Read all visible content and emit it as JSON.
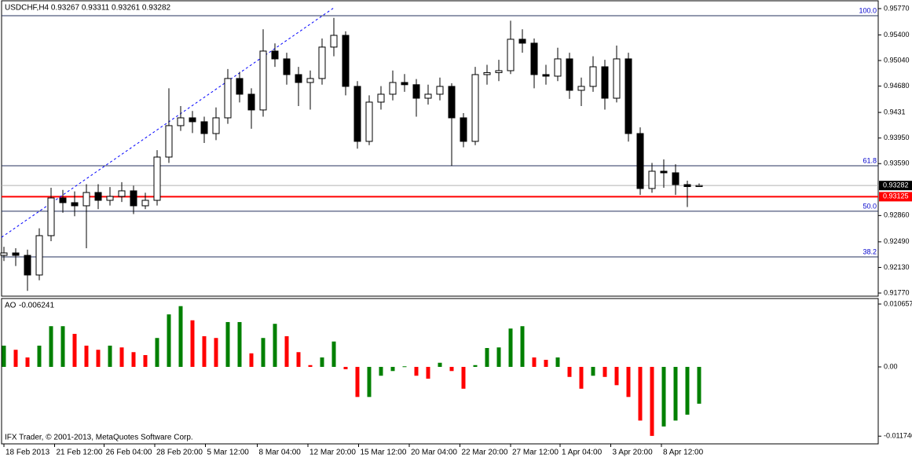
{
  "chart_data": [
    {
      "type": "candlestick",
      "title": "USDCHF,H4 0.93267 0.93311 0.93261 0.93282",
      "open": [
        0.923,
        0.92334,
        0.923,
        0.92024,
        0.92577,
        0.93107,
        0.93041,
        0.92997,
        0.93184,
        0.93074,
        0.93129,
        0.93207,
        0.92997,
        0.93074,
        0.93682,
        0.94124,
        0.94234,
        0.94179,
        0.94013,
        0.94234,
        0.94787,
        0.94566,
        0.94345,
        0.95173,
        0.95063,
        0.94842,
        0.94731,
        0.94787,
        0.95229,
        0.95394,
        0.94676,
        0.93903,
        0.94455,
        0.94566,
        0.94731,
        0.947,
        0.9451,
        0.94566,
        0.94676,
        0.94234,
        0.93903,
        0.94842,
        0.9487,
        0.94897,
        0.95339,
        0.95284,
        0.94842,
        0.9482,
        0.95063,
        0.94621,
        0.94676,
        0.94952,
        0.9451,
        0.95063,
        0.94013,
        0.9324,
        0.93483,
        0.93461,
        0.93295,
        0.93267
      ],
      "high": [
        0.9242,
        0.924,
        0.9238,
        0.9268,
        0.9325,
        0.9322,
        0.932,
        0.933,
        0.933,
        0.9326,
        0.9333,
        0.9328,
        0.9318,
        0.9378,
        0.9465,
        0.944,
        0.9433,
        0.9425,
        0.9438,
        0.9492,
        0.9488,
        0.9465,
        0.9548,
        0.9528,
        0.9515,
        0.9495,
        0.949,
        0.9535,
        0.9564,
        0.9545,
        0.9475,
        0.9455,
        0.9468,
        0.949,
        0.9485,
        0.9478,
        0.947,
        0.948,
        0.9472,
        0.943,
        0.9495,
        0.9498,
        0.9505,
        0.956,
        0.9548,
        0.9535,
        0.9498,
        0.9522,
        0.9515,
        0.948,
        0.951,
        0.9505,
        0.9525,
        0.9515,
        0.941,
        0.936,
        0.9365,
        0.9358,
        0.9335,
        0.93311
      ],
      "low": [
        0.9222,
        0.9215,
        0.918,
        0.9195,
        0.925,
        0.929,
        0.9285,
        0.924,
        0.9295,
        0.93,
        0.9305,
        0.9288,
        0.9295,
        0.93,
        0.936,
        0.9405,
        0.9402,
        0.9388,
        0.9392,
        0.9415,
        0.9445,
        0.9408,
        0.9425,
        0.9495,
        0.947,
        0.944,
        0.9435,
        0.947,
        0.951,
        0.9455,
        0.938,
        0.9385,
        0.9435,
        0.9448,
        0.946,
        0.9425,
        0.9442,
        0.9448,
        0.9356,
        0.9382,
        0.9385,
        0.947,
        0.9475,
        0.9485,
        0.9515,
        0.9465,
        0.947,
        0.9475,
        0.945,
        0.944,
        0.946,
        0.9435,
        0.9445,
        0.939,
        0.9315,
        0.9318,
        0.9325,
        0.9315,
        0.9298,
        0.93261
      ],
      "close": [
        0.92334,
        0.923,
        0.92024,
        0.92577,
        0.93107,
        0.93041,
        0.92997,
        0.93184,
        0.93074,
        0.93129,
        0.93207,
        0.92997,
        0.93074,
        0.93682,
        0.94124,
        0.94234,
        0.94179,
        0.94013,
        0.94234,
        0.94787,
        0.94566,
        0.94345,
        0.95173,
        0.95063,
        0.94842,
        0.94731,
        0.94787,
        0.95229,
        0.95394,
        0.94676,
        0.93903,
        0.94455,
        0.94566,
        0.94731,
        0.947,
        0.9451,
        0.94566,
        0.94676,
        0.94234,
        0.93903,
        0.94842,
        0.9487,
        0.94897,
        0.95339,
        0.95284,
        0.94842,
        0.9482,
        0.95063,
        0.94621,
        0.94676,
        0.94952,
        0.9451,
        0.95063,
        0.94013,
        0.9324,
        0.93483,
        0.93461,
        0.93295,
        0.93267,
        0.93282
      ],
      "up_color": "#ffffff",
      "down_color": "#000000",
      "xlim": [
        -0.2,
        74.2
      ],
      "xticks": [
        {
          "value": 0,
          "label": "18 Feb 2013"
        },
        {
          "value": 4.3,
          "label": "21 Feb 12:00"
        },
        {
          "value": 8.5,
          "label": "26 Feb 04:00"
        },
        {
          "value": 12.8,
          "label": "28 Feb 20:00"
        },
        {
          "value": 17.1,
          "label": "5 Mar 12:00"
        },
        {
          "value": 21.5,
          "label": "8 Mar 04:00"
        },
        {
          "value": 25.8,
          "label": "12 Mar 20:00"
        },
        {
          "value": 30.1,
          "label": "15 Mar 12:00"
        },
        {
          "value": 34.4,
          "label": "20 Mar 04:00"
        },
        {
          "value": 38.7,
          "label": "22 Mar 20:00"
        },
        {
          "value": 43,
          "label": "27 Mar 12:00"
        },
        {
          "value": 47.2,
          "label": "1 Apr 04:00"
        },
        {
          "value": 51.5,
          "label": "3 Apr 20:00"
        },
        {
          "value": 55.8,
          "label": "8 Apr 12:00"
        }
      ],
      "ylim": [
        0.91726,
        0.9588
      ],
      "yticks": [
        {
          "value": 0.9577,
          "label": "0.95770"
        },
        {
          "value": 0.954,
          "label": "0.95400"
        },
        {
          "value": 0.9504,
          "label": "0.95040"
        },
        {
          "value": 0.9468,
          "label": "0.94680"
        },
        0.9431,
        {
          "value": 0.9395,
          "label": "0.93950"
        },
        {
          "value": 0.9359,
          "label": "0.93590"
        },
        {
          "value": 0.9286,
          "label": "0.92860"
        },
        {
          "value": 0.9249,
          "label": "0.92490"
        },
        {
          "value": 0.9213,
          "label": "0.92130"
        },
        {
          "value": 0.9177,
          "label": "0.91770"
        }
      ],
      "levels": [
        {
          "value": 0.9567,
          "label": "100.0"
        },
        {
          "value": 0.9356,
          "label": "61.8"
        },
        {
          "value": 0.9292,
          "label": "50.0"
        },
        {
          "value": 0.92278,
          "label": "38.2"
        }
      ],
      "level_color": "#24325e",
      "current_price": 0.93282,
      "marked_price": 0.93125,
      "marked_color": "#ff0000",
      "trend_line": {
        "x": [
          -0.2,
          28
        ],
        "y": [
          0.92554,
          0.95781
        ],
        "color": "#0000ff"
      }
    },
    {
      "type": "bar",
      "title": "AO",
      "values": [
        0.0036,
        0.0029,
        0.0016,
        0.0036,
        0.0069,
        0.0069,
        0.0056,
        0.0036,
        0.0029,
        0.0036,
        0.0033,
        0.0025,
        0.002,
        0.0049,
        0.0089,
        0.0103,
        0.0079,
        0.0052,
        0.0049,
        0.0076,
        0.0076,
        0.0023,
        0.0049,
        0.0073,
        0.0052,
        0.0025,
        0.0003,
        0.0016,
        0.0043,
        -0.0004,
        -0.0051,
        -0.0051,
        -0.0015,
        -0.0007,
        0.0001,
        -0.0015,
        -0.002,
        0.0007,
        -0.0007,
        -0.0037,
        0.0003,
        0.0032,
        0.0033,
        0.0065,
        0.0069,
        0.0016,
        0.0012,
        0.0016,
        -0.0017,
        -0.0037,
        -0.0015,
        -0.0017,
        -0.0031,
        -0.0051,
        -0.0091,
        -0.0117,
        -0.0101,
        -0.0091,
        -0.0081,
        -0.006241
      ],
      "up_color": "#008000",
      "down_color": "#ff0000",
      "ylim": [
        -0.01265,
        0.01159
      ],
      "yticks": [
        0.010657,
        {
          "value": 0,
          "label": "0.00"
        },
        -0.011746
      ],
      "annotation": "IFX Trader, © 2001-2013, MetaQuotes Software Corp."
    }
  ]
}
